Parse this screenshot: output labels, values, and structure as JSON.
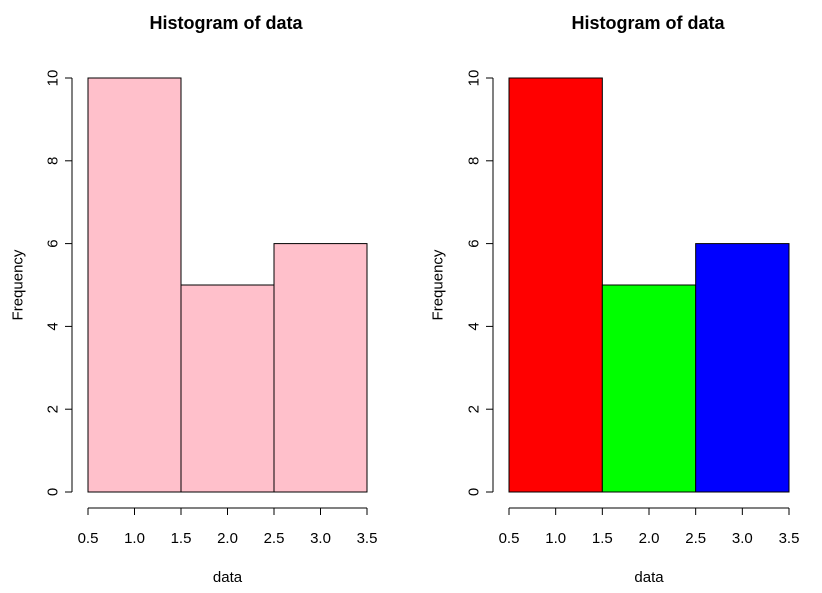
{
  "chart_data": [
    {
      "type": "bar",
      "title": "Histogram of data",
      "xlabel": "data",
      "ylabel": "Frequency",
      "bins": [
        {
          "start": 0.5,
          "end": 1.5,
          "count": 10,
          "color": "#FFC0CB"
        },
        {
          "start": 1.5,
          "end": 2.5,
          "count": 5,
          "color": "#FFC0CB"
        },
        {
          "start": 2.5,
          "end": 3.5,
          "count": 6,
          "color": "#FFC0CB"
        }
      ],
      "xlim": [
        0.5,
        3.5
      ],
      "ylim": [
        0,
        10
      ],
      "xticks": [
        0.5,
        1.0,
        1.5,
        2.0,
        2.5,
        3.0,
        3.5
      ],
      "xtick_labels": [
        "0.5",
        "1.0",
        "1.5",
        "2.0",
        "2.5",
        "3.0",
        "3.5"
      ],
      "yticks": [
        0,
        2,
        4,
        6,
        8,
        10
      ],
      "ytick_labels": [
        "0",
        "2",
        "4",
        "6",
        "8",
        "10"
      ],
      "grid": false
    },
    {
      "type": "bar",
      "title": "Histogram of data",
      "xlabel": "data",
      "ylabel": "Frequency",
      "bins": [
        {
          "start": 0.5,
          "end": 1.5,
          "count": 10,
          "color": "#FF0000"
        },
        {
          "start": 1.5,
          "end": 2.5,
          "count": 5,
          "color": "#00FF00"
        },
        {
          "start": 2.5,
          "end": 3.5,
          "count": 6,
          "color": "#0000FF"
        }
      ],
      "xlim": [
        0.5,
        3.5
      ],
      "ylim": [
        0,
        10
      ],
      "xticks": [
        0.5,
        1.0,
        1.5,
        2.0,
        2.5,
        3.0,
        3.5
      ],
      "xtick_labels": [
        "0.5",
        "1.0",
        "1.5",
        "2.0",
        "2.5",
        "3.0",
        "3.5"
      ],
      "yticks": [
        0,
        2,
        4,
        6,
        8,
        10
      ],
      "ytick_labels": [
        "0",
        "2",
        "4",
        "6",
        "8",
        "10"
      ],
      "grid": false
    }
  ]
}
